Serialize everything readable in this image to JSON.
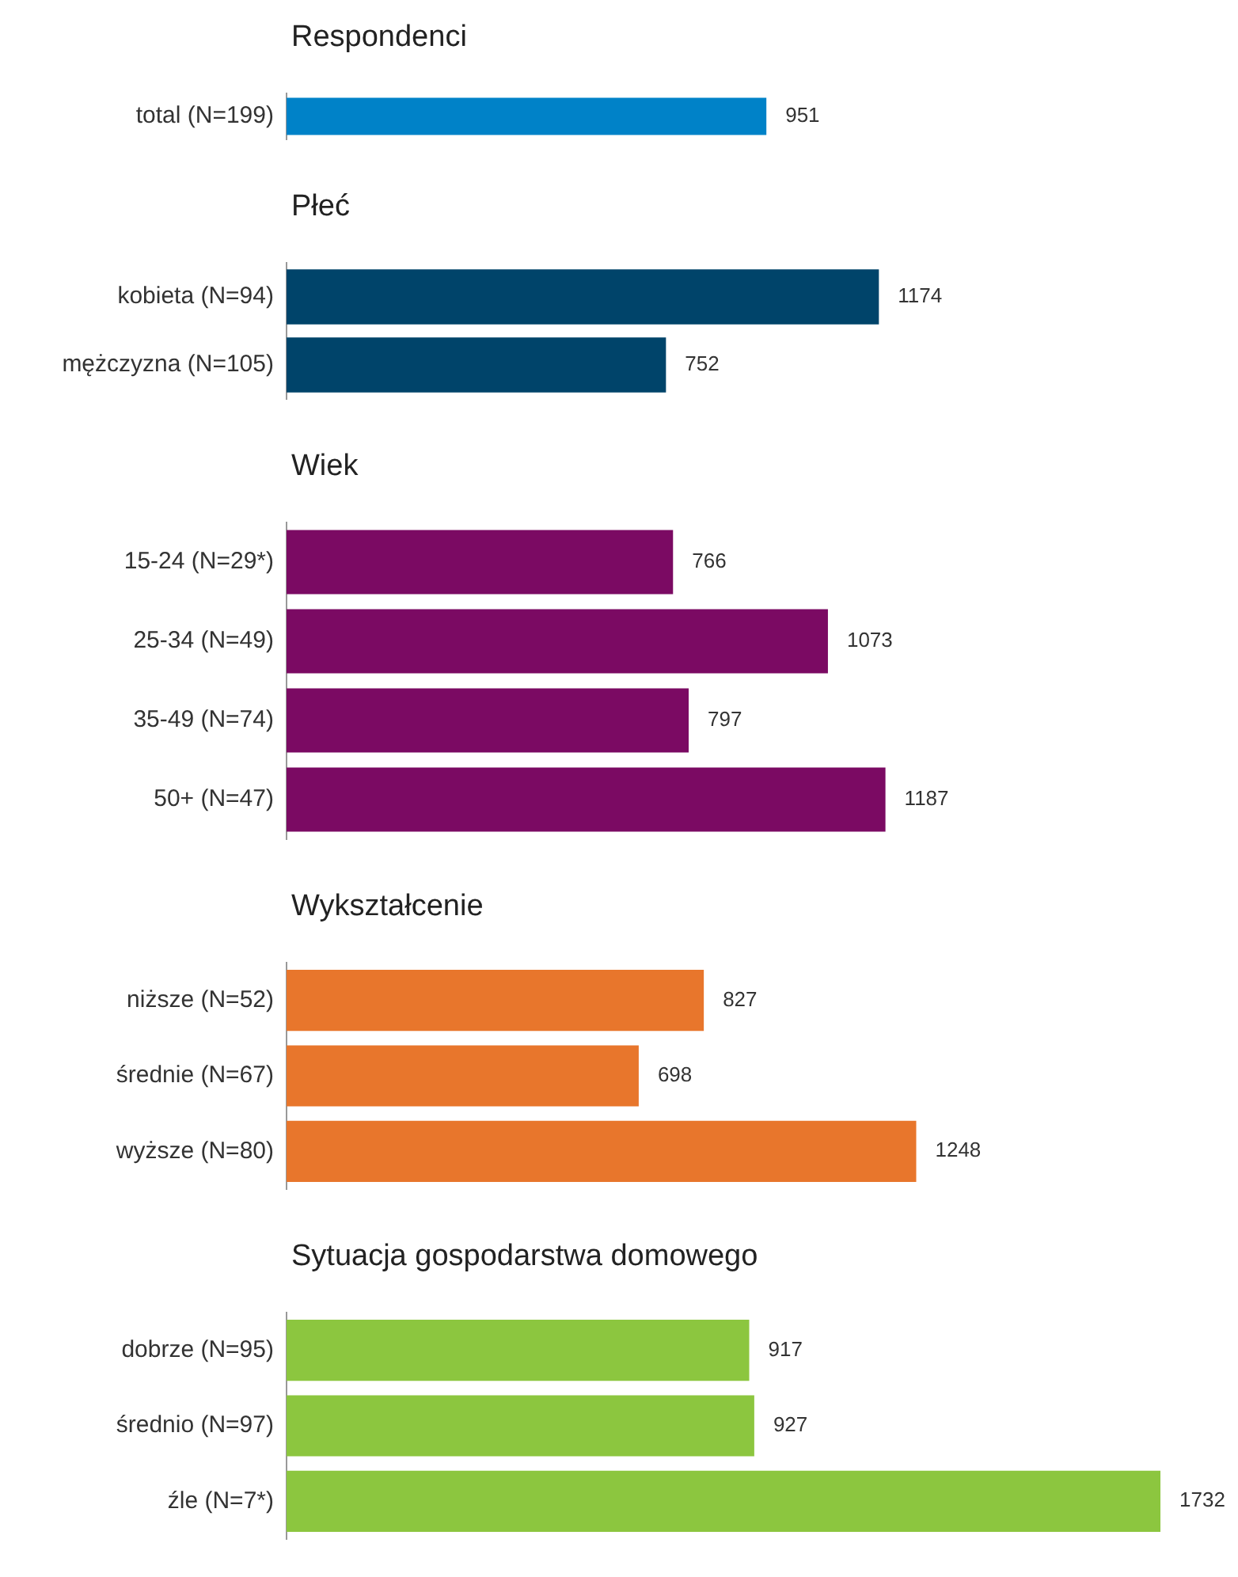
{
  "chart_data": [
    {
      "type": "bar",
      "orientation": "horizontal",
      "title": "Respondenci",
      "categories": [
        "total (N=199)"
      ],
      "values": [
        951
      ],
      "color": "#0082c8",
      "tick_labels": "y",
      "data_labels": true
    },
    {
      "type": "bar",
      "orientation": "horizontal",
      "title": "Płeć",
      "categories": [
        "kobieta (N=94)",
        "mężczyzna (N=105)"
      ],
      "values": [
        1174,
        752
      ],
      "color": "#00446a",
      "tick_labels": "y",
      "data_labels": true
    },
    {
      "type": "bar",
      "orientation": "horizontal",
      "title": "Wiek",
      "categories": [
        "15-24 (N=29*)",
        "25-34 (N=49)",
        "35-49 (N=74)",
        "50+ (N=47)"
      ],
      "values": [
        766,
        1073,
        797,
        1187
      ],
      "color": "#7b0a63",
      "tick_labels": "y",
      "data_labels": true
    },
    {
      "type": "bar",
      "orientation": "horizontal",
      "title": "Wykształcenie",
      "categories": [
        "niższe (N=52)",
        "średnie (N=67)",
        "wyższe (N=80)"
      ],
      "values": [
        827,
        698,
        1248
      ],
      "color": "#e8762c",
      "tick_labels": "y",
      "data_labels": true
    },
    {
      "type": "bar",
      "orientation": "horizontal",
      "title": "Sytuacja gospodarstwa domowego",
      "categories": [
        "dobrze (N=95)",
        "średnio (N=97)",
        "źle (N=7*)"
      ],
      "values": [
        917,
        927,
        1732
      ],
      "color": "#8cc63f",
      "tick_labels": "y",
      "data_labels": true
    }
  ]
}
